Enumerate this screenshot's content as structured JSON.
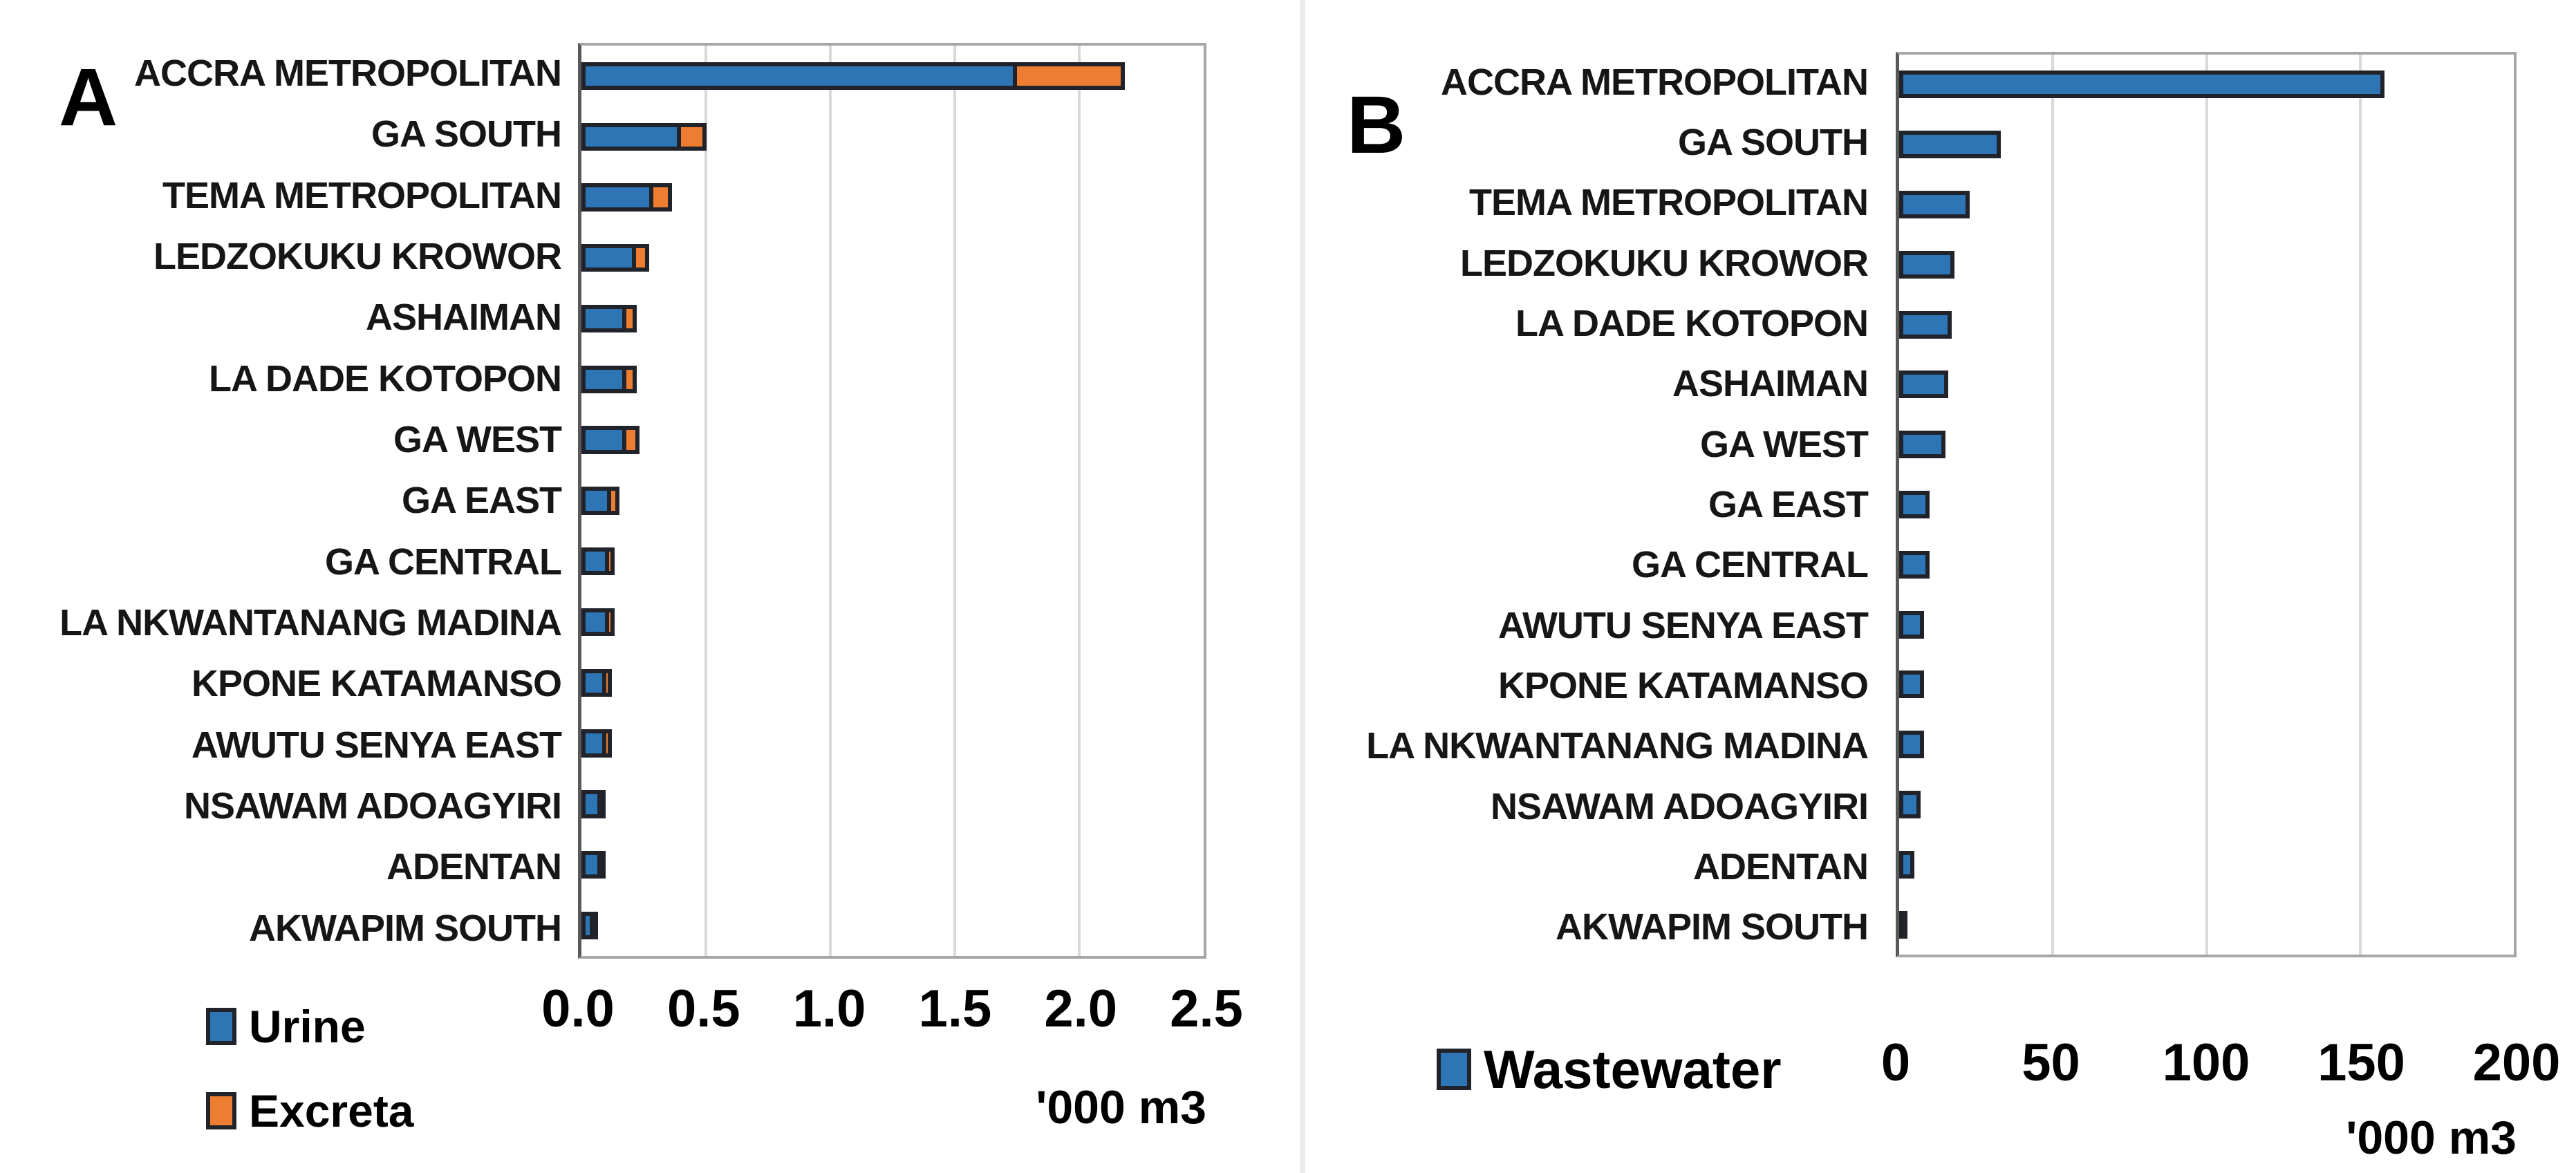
{
  "page": {
    "background": "#ffffff"
  },
  "colors": {
    "urine_blue": "#2E75B6",
    "excreta_orange": "#ED7D31",
    "wastewater_blue": "#2E75B6",
    "bar_outline": "#20242A",
    "plot_border": "#A6A6A6",
    "axis_line": "#595959",
    "gridline": "#D9D9D9",
    "text": "#111111",
    "panel_divider": "#ECECEC"
  },
  "chart_data": [
    {
      "id": "A",
      "panel_label": "A",
      "type": "bar",
      "orientation": "horizontal",
      "stacked": true,
      "grid": true,
      "legend_position": "bottom-left",
      "categories": [
        "ACCRA METROPOLITAN",
        "GA SOUTH",
        "TEMA METROPOLITAN",
        "LEDZOKUKU KROWOR",
        "ASHAIMAN",
        "LA DADE KOTOPON",
        "GA WEST",
        "GA EAST",
        "GA CENTRAL",
        "LA NKWANTANANG MADINA",
        "KPONE KATAMANSO",
        "AWUTU SENYA EAST",
        "NSAWAM ADOAGYIRI",
        "ADENTAN",
        "AKWAPIM SOUTH"
      ],
      "series": [
        {
          "name": "Urine",
          "color": "#2E75B6",
          "values": [
            1.75,
            0.4,
            0.29,
            0.22,
            0.18,
            0.18,
            0.18,
            0.12,
            0.11,
            0.11,
            0.1,
            0.1,
            0.08,
            0.08,
            0.05
          ]
        },
        {
          "name": "Excreta",
          "color": "#ED7D31",
          "values": [
            0.45,
            0.12,
            0.09,
            0.07,
            0.06,
            0.06,
            0.07,
            0.05,
            0.04,
            0.04,
            0.04,
            0.04,
            0.03,
            0.03,
            0.01
          ]
        }
      ],
      "xlabel": "'000 m3",
      "x_ticks": [
        "0.0",
        "0.5",
        "1.0",
        "1.5",
        "2.0",
        "2.5"
      ],
      "xlim": [
        0,
        2.5
      ]
    },
    {
      "id": "B",
      "panel_label": "B",
      "type": "bar",
      "orientation": "horizontal",
      "stacked": false,
      "grid": true,
      "legend_position": "bottom-left",
      "categories": [
        "ACCRA METROPOLITAN",
        "GA SOUTH",
        "TEMA METROPOLITAN",
        "LEDZOKUKU KROWOR",
        "LA DADE KOTOPON",
        "ASHAIMAN",
        "GA WEST",
        "GA EAST",
        "GA CENTRAL",
        "AWUTU SENYA EAST",
        "KPONE KATAMANSO",
        "LA NKWANTANANG MADINA",
        "NSAWAM ADOAGYIRI",
        "ADENTAN",
        "AKWAPIM SOUTH"
      ],
      "series": [
        {
          "name": "Wastewater",
          "color": "#2E75B6",
          "values": [
            158,
            33,
            23,
            18,
            17,
            16,
            15,
            10,
            10,
            8,
            8,
            8,
            7,
            5,
            2
          ]
        }
      ],
      "xlabel": "'000 m3",
      "x_ticks": [
        "0",
        "50",
        "100",
        "150",
        "200"
      ],
      "xlim": [
        0,
        200
      ]
    }
  ]
}
